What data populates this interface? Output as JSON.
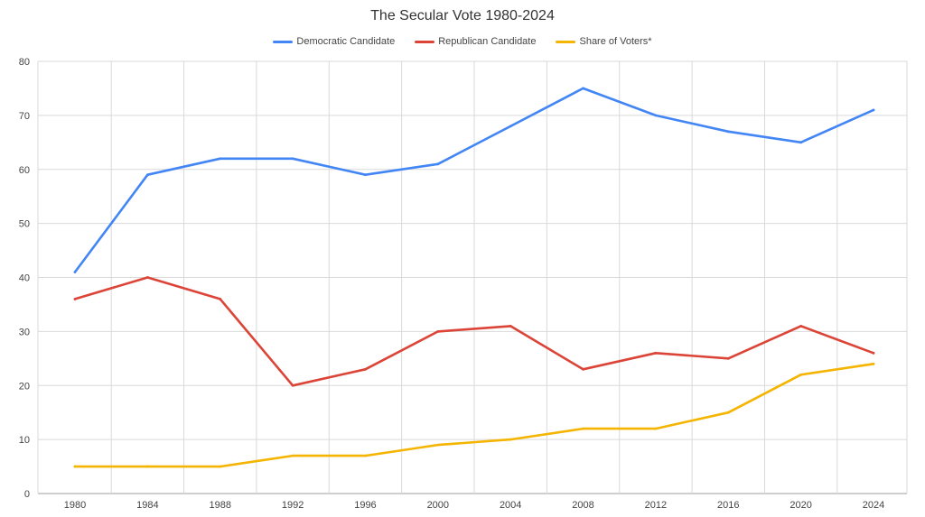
{
  "chart_data": {
    "type": "line",
    "title": "The Secular Vote 1980-2024",
    "xlabel": "",
    "ylabel": "",
    "categories": [
      "1980",
      "1984",
      "1988",
      "1992",
      "1996",
      "2000",
      "2004",
      "2008",
      "2012",
      "2016",
      "2020",
      "2024"
    ],
    "ylim": [
      0,
      80
    ],
    "yticks": [
      0,
      10,
      20,
      30,
      40,
      50,
      60,
      70,
      80
    ],
    "grid": true,
    "legend_position": "top",
    "series": [
      {
        "name": "Democratic Candidate",
        "color": "#4285f4",
        "values": [
          41,
          59,
          62,
          62,
          59,
          61,
          68,
          75,
          70,
          67,
          65,
          71
        ]
      },
      {
        "name": "Republican Candidate",
        "color": "#db4437",
        "values": [
          36,
          40,
          36,
          20,
          23,
          30,
          31,
          23,
          26,
          25,
          31,
          26
        ]
      },
      {
        "name": "Share of Voters*",
        "color": "#f4b400",
        "values": [
          5,
          5,
          5,
          7,
          7,
          9,
          10,
          12,
          12,
          15,
          22,
          24
        ]
      }
    ]
  }
}
